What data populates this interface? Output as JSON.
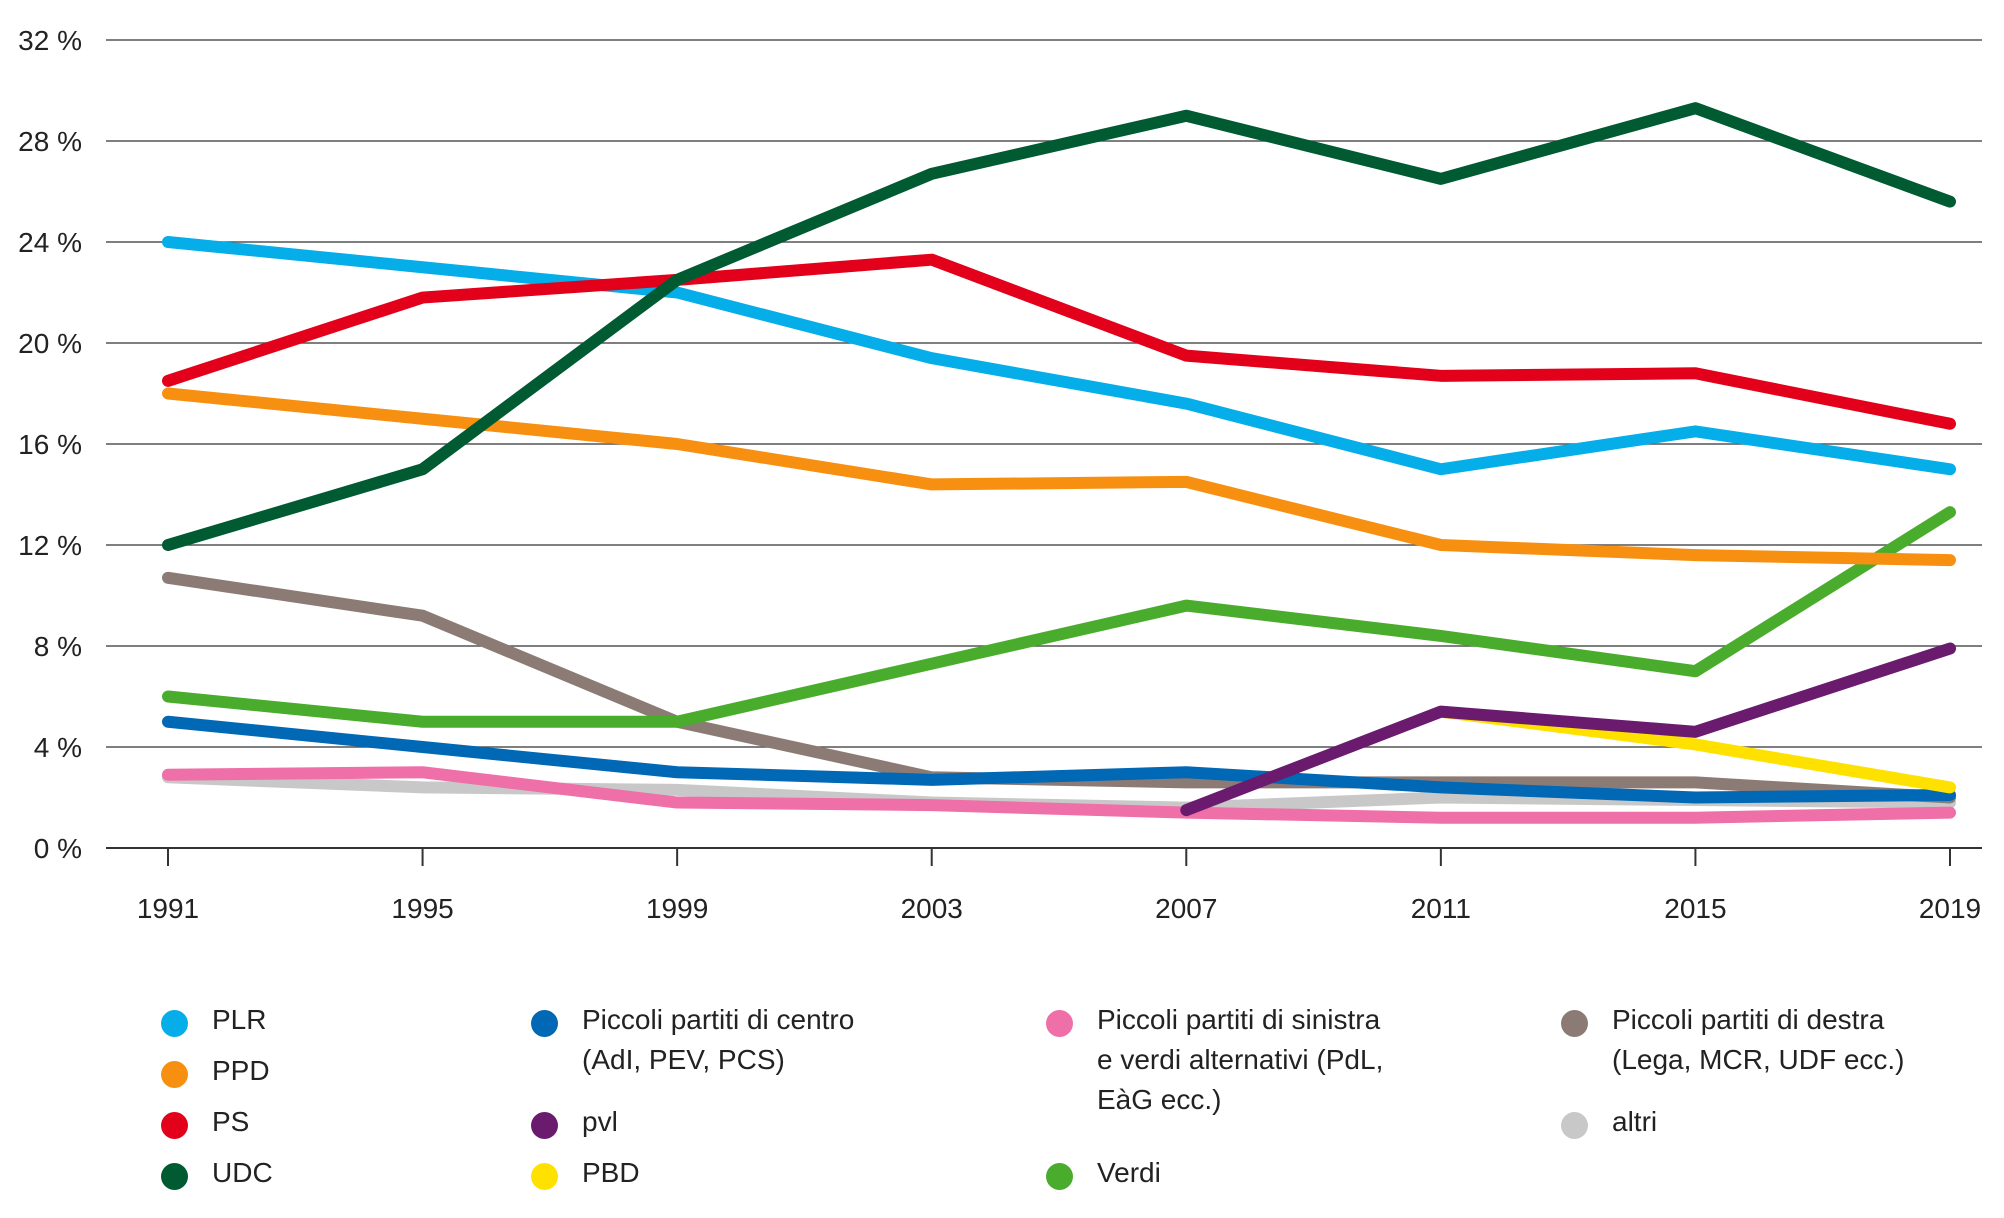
{
  "chart_data": {
    "type": "line",
    "title": "",
    "xlabel": "",
    "ylabel": "",
    "x": [
      "1991",
      "1995",
      "1999",
      "2003",
      "2007",
      "2011",
      "2015",
      "2019"
    ],
    "ylim": [
      0,
      32
    ],
    "y_ticks": [
      0,
      4,
      8,
      12,
      16,
      20,
      24,
      28,
      32
    ],
    "y_tick_labels": [
      "0 %",
      "4 %",
      "8 %",
      "12 %",
      "16 %",
      "20 %",
      "24 %",
      "28 %",
      "32 %"
    ],
    "grid": true,
    "legend_position": "bottom",
    "series": [
      {
        "name": "altri",
        "color": "#c8c8c8",
        "values": [
          2.8,
          2.4,
          2.3,
          1.8,
          1.6,
          2.0,
          1.9,
          1.8
        ]
      },
      {
        "name": "Piccoli partiti di destra\n(Lega, MCR, UDF ecc.)",
        "color": "#8c7b74",
        "values": [
          10.7,
          9.2,
          5.0,
          2.8,
          2.6,
          2.6,
          2.6,
          2.0
        ]
      },
      {
        "name": "Piccoli partiti di centro\n(AdI, PEV, PCS)",
        "color": "#0068b4",
        "values": [
          5.0,
          4.0,
          3.0,
          2.7,
          3.0,
          2.4,
          2.0,
          2.1
        ]
      },
      {
        "name": "Piccoli partiti di sinistra\ne verdi alternativi (PdL,\nEàG ecc.)",
        "color": "#ef6fa8",
        "values": [
          2.9,
          3.0,
          1.8,
          1.7,
          1.4,
          1.2,
          1.2,
          1.4
        ]
      },
      {
        "name": "PBD",
        "color": "#ffe100",
        "values": [
          null,
          null,
          null,
          null,
          null,
          5.4,
          4.1,
          2.4
        ]
      },
      {
        "name": "pvl",
        "color": "#6a1b6e",
        "values": [
          null,
          null,
          null,
          null,
          1.5,
          5.4,
          4.6,
          7.9
        ]
      },
      {
        "name": "Verdi",
        "color": "#4aac2c",
        "values": [
          6.0,
          5.0,
          5.0,
          7.3,
          9.6,
          8.4,
          7.0,
          13.3
        ]
      },
      {
        "name": "PPD",
        "color": "#f79010",
        "values": [
          18.0,
          17.0,
          16.0,
          14.4,
          14.5,
          12.0,
          11.6,
          11.4
        ]
      },
      {
        "name": "PLR",
        "color": "#05aee9",
        "values": [
          24.0,
          23.0,
          22.0,
          19.4,
          17.6,
          15.0,
          16.5,
          15.0
        ]
      },
      {
        "name": "PS",
        "color": "#e3001b",
        "values": [
          18.5,
          21.8,
          22.5,
          23.3,
          19.5,
          18.7,
          18.8,
          16.8
        ]
      },
      {
        "name": "UDC",
        "color": "#005a32",
        "values": [
          12.0,
          15.0,
          22.5,
          26.7,
          29.0,
          26.5,
          29.3,
          25.6
        ]
      }
    ]
  },
  "legend": [
    {
      "label": "PLR",
      "color": "#05aee9"
    },
    {
      "label": "PPD",
      "color": "#f79010"
    },
    {
      "label": "PS",
      "color": "#e3001b"
    },
    {
      "label": "UDC",
      "color": "#005a32"
    },
    {
      "label": "Piccoli partiti di centro\n(AdI, PEV, PCS)",
      "color": "#0068b4"
    },
    {
      "label": "pvl",
      "color": "#6a1b6e"
    },
    {
      "label": "PBD",
      "color": "#ffe100"
    },
    {
      "label": "Piccoli partiti di sinistra\ne verdi alternativi (PdL,\nEàG ecc.)",
      "color": "#ef6fa8"
    },
    {
      "label": "Verdi",
      "color": "#4aac2c"
    },
    {
      "label": "Piccoli partiti di destra\n(Lega, MCR, UDF ecc.)",
      "color": "#8c7b74"
    },
    {
      "label": "altri",
      "color": "#c8c8c8"
    }
  ]
}
